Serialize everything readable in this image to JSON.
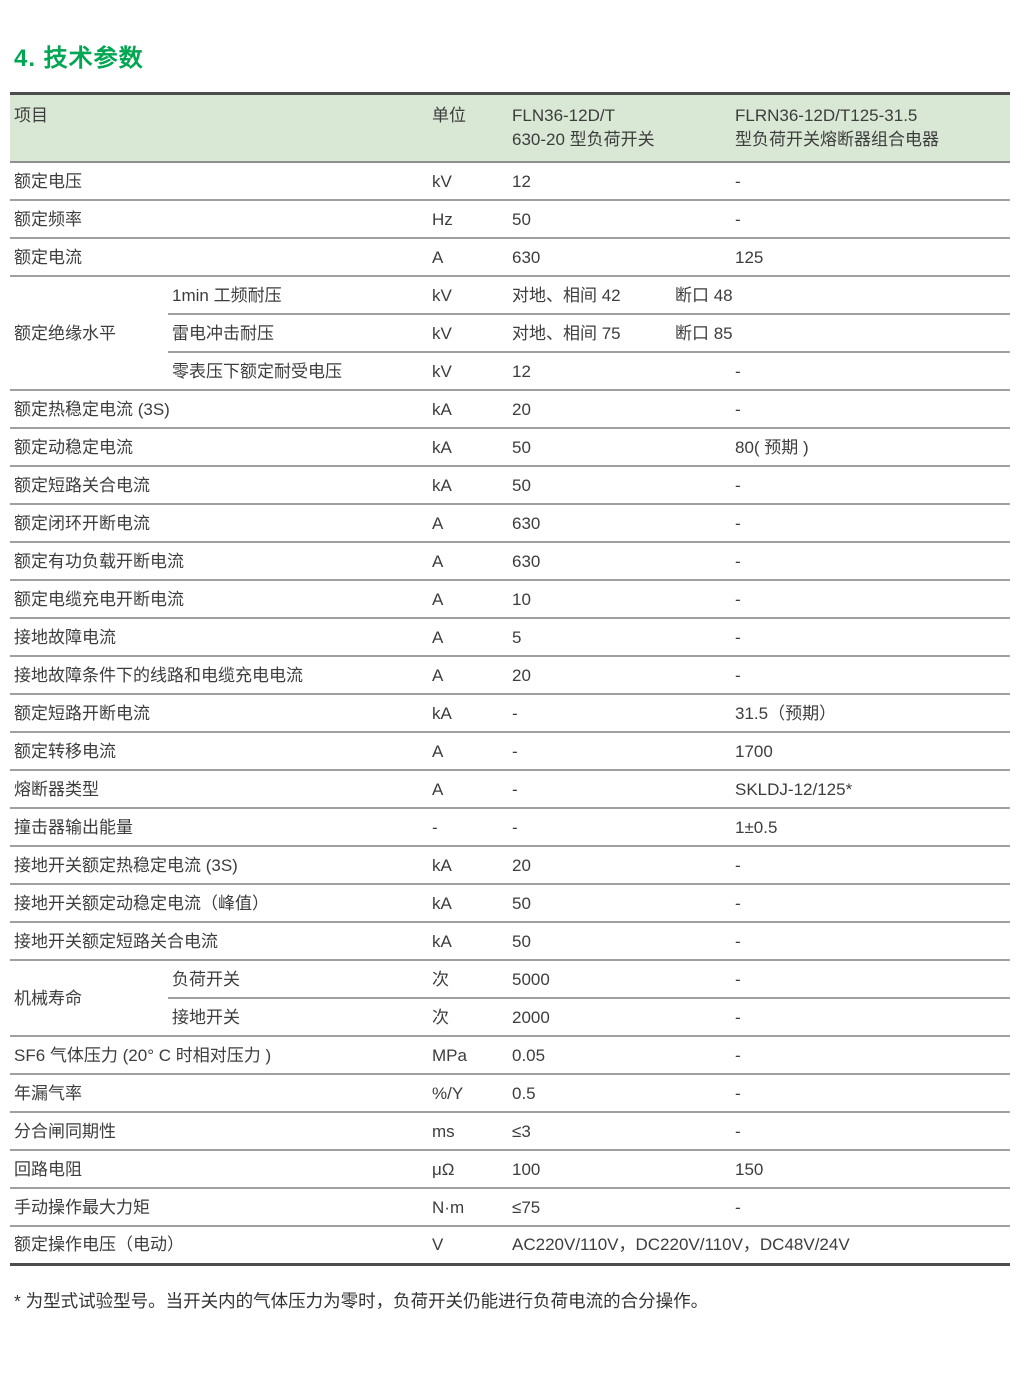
{
  "page": {
    "title": "4. 技术参数",
    "footnote": "* 为型式试验型号。当开关内的气体压力为零时，负荷开关仍能进行负荷电流的合分操作。"
  },
  "colors": {
    "accent_green": "#00a651",
    "header_bg": "#d9e7d5",
    "rule_dark": "#4c4c4c",
    "rule_gray": "#a0a0a0",
    "text": "#3d3d3d"
  },
  "table": {
    "headers": {
      "item": "项目",
      "unit": "单位",
      "product1_line1": "FLN36-12D/T",
      "product1_line2": "630-20 型负荷开关",
      "product2_line1": "FLRN36-12D/T125-31.5",
      "product2_line2": "型负荷开关熔断器组合电器"
    },
    "rows": [
      {
        "label": "额定电压",
        "unit": "kV",
        "v1": "12",
        "v2": "-"
      },
      {
        "label": "额定频率",
        "unit": "Hz",
        "v1": "50",
        "v2": "-"
      },
      {
        "label": "额定电流",
        "unit": "A",
        "v1": "630",
        "v2": "125"
      },
      {
        "label": "额定绝缘水平",
        "sub": "1min 工频耐压",
        "unit": "kV",
        "v1": "对地、相间 42",
        "v1b": "断口 48"
      },
      {
        "sub": "雷电冲击耐压",
        "unit": "kV",
        "v1": "对地、相间 75",
        "v1b": "断口 85"
      },
      {
        "sub": "零表压下额定耐受电压",
        "unit": "kV",
        "v1": "12",
        "v2": "-"
      },
      {
        "label": "额定热稳定电流 (3S)",
        "unit": "kA",
        "v1": "20",
        "v2": "-"
      },
      {
        "label": "额定动稳定电流",
        "unit": "kA",
        "v1": "50",
        "v2": "80( 预期 )"
      },
      {
        "label": "额定短路关合电流",
        "unit": "kA",
        "v1": "50",
        "v2": "-"
      },
      {
        "label": "额定闭环开断电流",
        "unit": "A",
        "v1": "630",
        "v2": "-"
      },
      {
        "label": "额定有功负载开断电流",
        "unit": "A",
        "v1": "630",
        "v2": "-"
      },
      {
        "label": "额定电缆充电开断电流",
        "unit": "A",
        "v1": "10",
        "v2": "-"
      },
      {
        "label": "接地故障电流",
        "unit": "A",
        "v1": "5",
        "v2": "-"
      },
      {
        "label": "接地故障条件下的线路和电缆充电电流",
        "unit": "A",
        "v1": "20",
        "v2": "-"
      },
      {
        "label": "额定短路开断电流",
        "unit": "kA",
        "v1": "-",
        "v2": "31.5（预期）"
      },
      {
        "label": "额定转移电流",
        "unit": "A",
        "v1": "-",
        "v2": "1700"
      },
      {
        "label": "熔断器类型",
        "unit": "A",
        "v1": "-",
        "v2": "SKLDJ-12/125*"
      },
      {
        "label": "撞击器输出能量",
        "unit": "-",
        "v1": "-",
        "v2": "1±0.5"
      },
      {
        "label": "接地开关额定热稳定电流 (3S)",
        "unit": "kA",
        "v1": "20",
        "v2": "-"
      },
      {
        "label": "接地开关额定动稳定电流（峰值）",
        "unit": "kA",
        "v1": "50",
        "v2": "-"
      },
      {
        "label": "接地开关额定短路关合电流",
        "unit": "kA",
        "v1": "50",
        "v2": "-"
      },
      {
        "label": "机械寿命",
        "sub": "负荷开关",
        "unit": "次",
        "v1": "5000",
        "v2": "-"
      },
      {
        "sub": "接地开关",
        "unit": "次",
        "v1": "2000",
        "v2": "-"
      },
      {
        "label": "SF6 气体压力 (20° C 时相对压力 )",
        "unit": "MPa",
        "v1": "0.05",
        "v2": "-"
      },
      {
        "label": "年漏气率",
        "unit": "%/Y",
        "v1": "0.5",
        "v2": "-"
      },
      {
        "label": "分合闸同期性",
        "unit": "ms",
        "v1": "≤3",
        "v2": "-"
      },
      {
        "label": "回路电阻",
        "unit": "μΩ",
        "v1": "100",
        "v2": "150"
      },
      {
        "label": "手动操作最大力矩",
        "unit": "N·m",
        "v1": "≤75",
        "v2": "-"
      },
      {
        "label": "额定操作电压（电动）",
        "unit": "V",
        "v1": "AC220V/110V，DC220V/110V，DC48V/24V"
      }
    ]
  }
}
